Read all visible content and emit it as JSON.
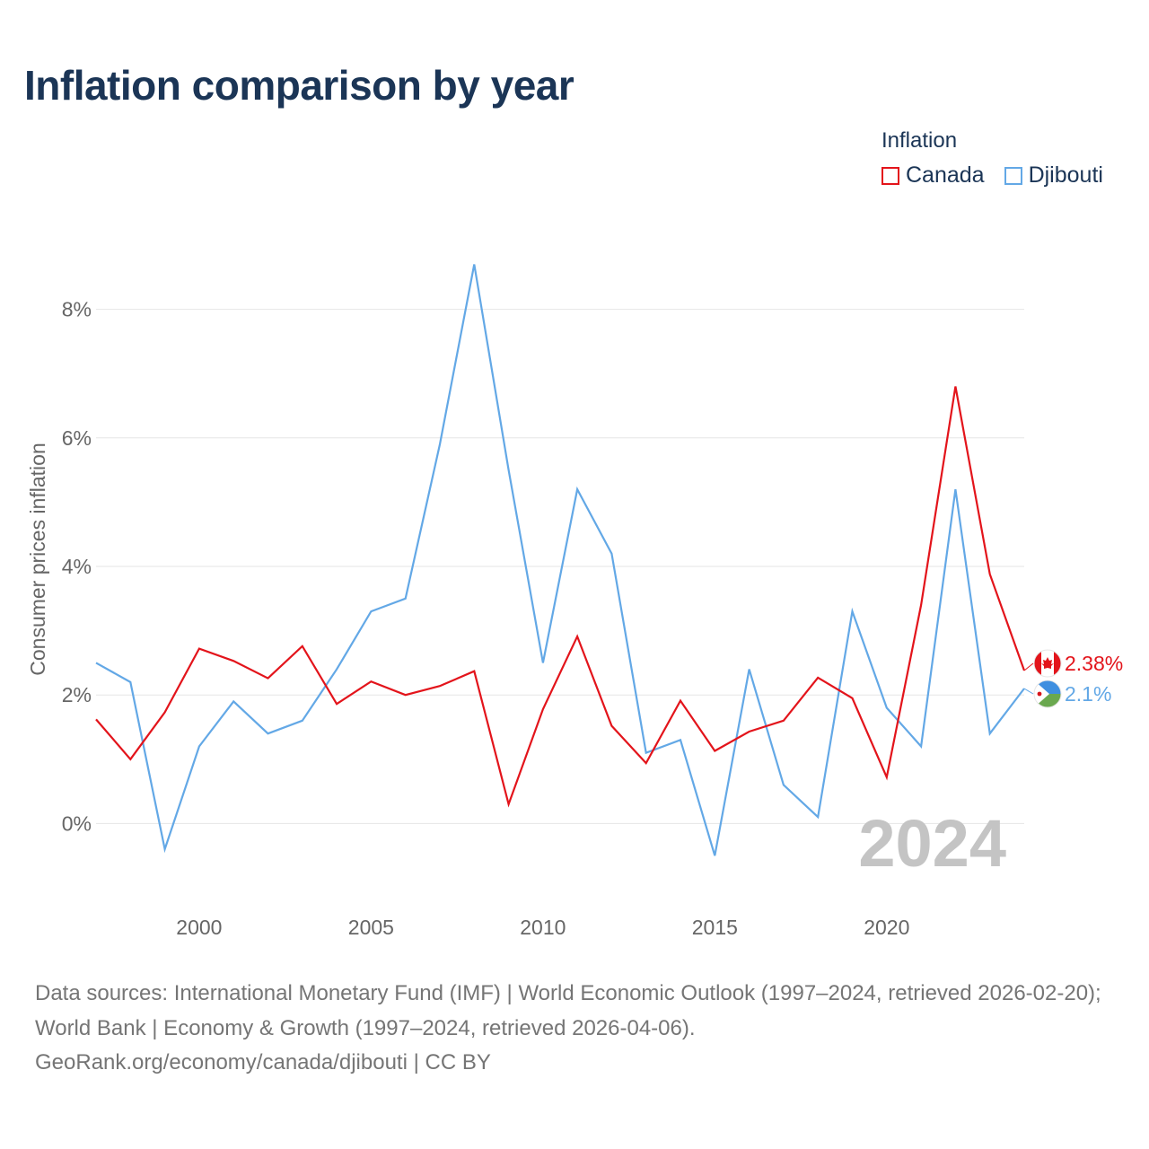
{
  "title": "Inflation comparison by year",
  "legend": {
    "title": "Inflation",
    "items": [
      {
        "label": "Canada",
        "color": "#e3141b"
      },
      {
        "label": "Djibouti",
        "color": "#63a8e6"
      }
    ]
  },
  "footer": {
    "sources": "Data sources: International Monetary Fund (IMF) | World Economic Outlook (1997–2024, retrieved 2026-02-20); World Bank | Economy & Growth (1997–2024, retrieved 2026-04-06).",
    "credit": "GeoRank.org/economy/canada/djibouti | CC BY"
  },
  "chart_data": {
    "type": "line",
    "title": "Inflation comparison by year",
    "xlabel": "",
    "ylabel": "Consumer prices inflation",
    "xlim": [
      1997,
      2024
    ],
    "ylim": [
      -1.0,
      9.0
    ],
    "x_ticks": [
      2000,
      2005,
      2010,
      2015,
      2020
    ],
    "x_tick_labels": [
      "2000",
      "2005",
      "2010",
      "2015",
      "2020"
    ],
    "y_ticks": [
      0,
      2,
      4,
      6,
      8
    ],
    "y_tick_labels": [
      "0%",
      "2%",
      "4%",
      "6%",
      "8%"
    ],
    "grid": true,
    "legend_position": "top-right",
    "watermark_year": "2024",
    "x": [
      1997,
      1998,
      1999,
      2000,
      2001,
      2002,
      2003,
      2004,
      2005,
      2006,
      2007,
      2008,
      2009,
      2010,
      2011,
      2012,
      2013,
      2014,
      2015,
      2016,
      2017,
      2018,
      2019,
      2020,
      2021,
      2022,
      2023,
      2024
    ],
    "series": [
      {
        "name": "Canada",
        "color": "#e3141b",
        "values": [
          1.62,
          1.0,
          1.73,
          2.72,
          2.53,
          2.26,
          2.76,
          1.86,
          2.21,
          2.0,
          2.14,
          2.37,
          0.3,
          1.78,
          2.91,
          1.52,
          0.94,
          1.91,
          1.13,
          1.43,
          1.6,
          2.27,
          1.95,
          0.72,
          3.4,
          6.8,
          3.88,
          2.38
        ],
        "end_label": "2.38%"
      },
      {
        "name": "Djibouti",
        "color": "#63a8e6",
        "values": [
          2.5,
          2.2,
          -0.4,
          1.2,
          1.9,
          1.4,
          1.6,
          2.4,
          3.3,
          3.5,
          5.9,
          8.7,
          5.5,
          2.5,
          5.2,
          4.2,
          1.1,
          1.3,
          -0.5,
          2.4,
          0.6,
          0.1,
          3.3,
          1.8,
          1.2,
          5.2,
          1.4,
          2.1
        ],
        "end_label": "2.1%"
      }
    ]
  }
}
